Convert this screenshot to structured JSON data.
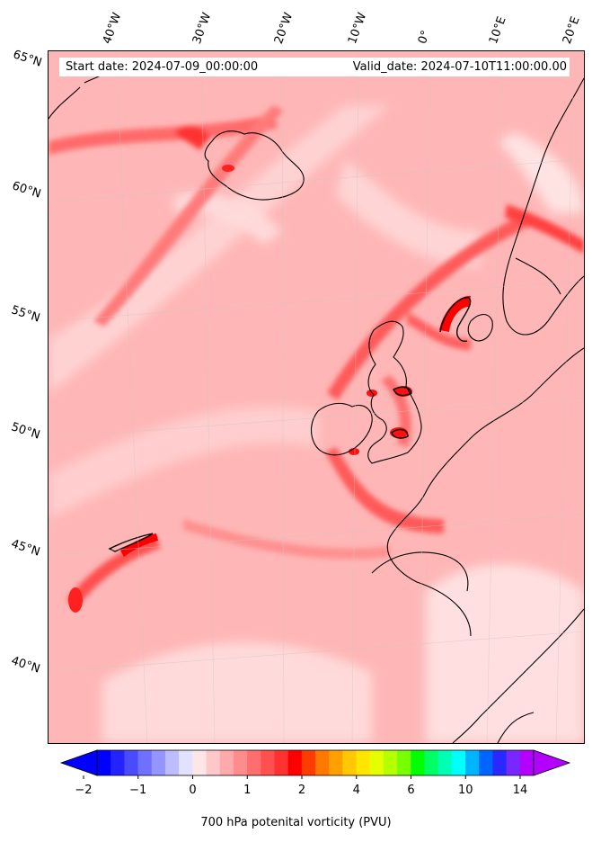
{
  "header": {
    "start_date": "Start date: 2024-07-09_00:00:00",
    "valid_date": "Valid_date: 2024-07-10T11:00:00.00"
  },
  "grid": {
    "longitudes": [
      "40°W",
      "30°W",
      "20°W",
      "10°W",
      "0°",
      "10°E",
      "20°E"
    ],
    "latitudes": [
      "65°N",
      "60°N",
      "55°N",
      "50°N",
      "45°N",
      "40°N"
    ]
  },
  "colorbar": {
    "label": "700 hPa potenital vorticity (PVU)",
    "ticks": [
      "−2",
      "−1",
      "0",
      "1",
      "2",
      "4",
      "6",
      "10",
      "14"
    ],
    "colors": [
      "#0000ff",
      "#2323ff",
      "#4a4aff",
      "#7070ff",
      "#9595ff",
      "#bcbcff",
      "#e2e2ff",
      "#ffe6e6",
      "#ffc8c8",
      "#ffaaaa",
      "#ff8c8c",
      "#ff6e6e",
      "#ff5050",
      "#ff3232",
      "#ff0000",
      "#ff3c00",
      "#ff7800",
      "#ffa000",
      "#ffc800",
      "#ffe600",
      "#e6ff00",
      "#b4ff00",
      "#78ff00",
      "#00ff00",
      "#00ff64",
      "#00ffb4",
      "#00ffff",
      "#00b4ff",
      "#0064ff",
      "#2828ff",
      "#7828ff",
      "#b400ff"
    ]
  },
  "colors": {
    "background_fill": "#ffb4b4",
    "coastline": "#000000"
  }
}
